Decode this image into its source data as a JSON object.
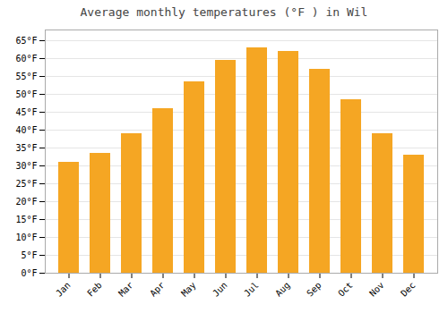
{
  "chart_data": {
    "type": "bar",
    "title": "Average monthly temperatures (°F ) in Wil",
    "categories": [
      "Jan",
      "Feb",
      "Mar",
      "Apr",
      "May",
      "Jun",
      "Jul",
      "Aug",
      "Sep",
      "Oct",
      "Nov",
      "Dec"
    ],
    "values": [
      31,
      33.5,
      39,
      46,
      53.5,
      59.5,
      63,
      62,
      57,
      48.5,
      39,
      33
    ],
    "color": "#F5A623",
    "ylim": [
      0,
      68
    ],
    "yticks": [
      {
        "value": 0,
        "label": "0°F"
      },
      {
        "value": 5,
        "label": "5°F"
      },
      {
        "value": 10,
        "label": "10°F"
      },
      {
        "value": 15,
        "label": "15°F"
      },
      {
        "value": 20,
        "label": "20°F"
      },
      {
        "value": 25,
        "label": "25°F"
      },
      {
        "value": 30,
        "label": "30°F"
      },
      {
        "value": 35,
        "label": "35°F"
      },
      {
        "value": 40,
        "label": "40°F"
      },
      {
        "value": 45,
        "label": "45°F"
      },
      {
        "value": 50,
        "label": "50°F"
      },
      {
        "value": 55,
        "label": "55°F"
      },
      {
        "value": 60,
        "label": "60°F"
      },
      {
        "value": 65,
        "label": "65°F"
      }
    ],
    "grid": true
  }
}
